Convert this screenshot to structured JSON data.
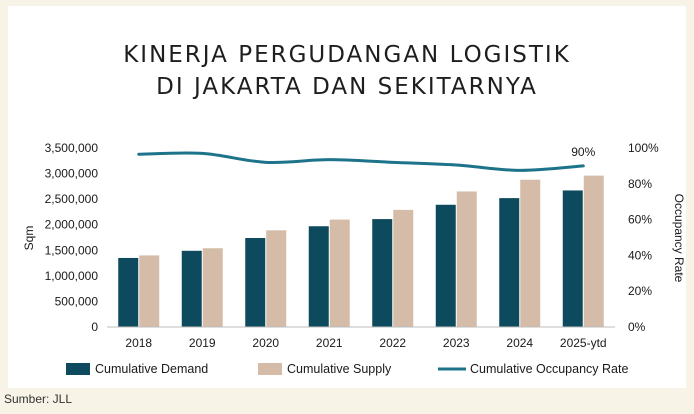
{
  "title_line1": "KINERJA PERGUDANGAN LOGISTIK",
  "title_line2": "DI JAKARTA DAN SEKITARNYA",
  "source": "Sumber: JLL",
  "colors": {
    "demand": "#0d4a5e",
    "supply": "#d4bca8",
    "occupancy": "#1d7389",
    "background": "#f7f3e6"
  },
  "chart_data": {
    "type": "bar",
    "categories": [
      "2018",
      "2019",
      "2020",
      "2021",
      "2022",
      "2023",
      "2024",
      "2025-ytd"
    ],
    "series": [
      {
        "name": "Cumulative Demand",
        "type": "bar",
        "axis": "left",
        "values": [
          1350000,
          1490000,
          1740000,
          1970000,
          2110000,
          2390000,
          2520000,
          2670000
        ]
      },
      {
        "name": "Cumulative Supply",
        "type": "bar",
        "axis": "left",
        "values": [
          1400000,
          1540000,
          1890000,
          2100000,
          2290000,
          2650000,
          2880000,
          2960000
        ]
      },
      {
        "name": "Cumulative Occupancy Rate",
        "type": "line",
        "axis": "right",
        "values": [
          96.5,
          97,
          92,
          93.5,
          92,
          90.5,
          87.5,
          90
        ]
      }
    ],
    "annotation": "90%",
    "ylabel": "Sqm",
    "ylabel_right": "Occupancy Rate",
    "ylim": [
      0,
      3500000
    ],
    "ylim_right": [
      0,
      100
    ],
    "yticks": [
      "0",
      "500,000",
      "1,000,000",
      "1,500,000",
      "2,000,000",
      "2,500,000",
      "3,000,000",
      "3,500,000"
    ],
    "yticks_right": [
      "0%",
      "20%",
      "40%",
      "60%",
      "80%",
      "100%"
    ],
    "grid": false,
    "legend_position": "bottom"
  }
}
